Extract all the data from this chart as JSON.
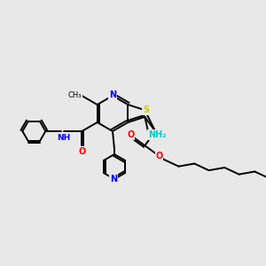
{
  "bg_color": "#e8e8e8",
  "atom_colors": {
    "N": "#0000ff",
    "O": "#ff0000",
    "S": "#cccc00",
    "NH2": "#00cccc",
    "NH": "#0000ff",
    "C": "#000000"
  },
  "bond_color": "#000000",
  "figsize": [
    3.0,
    3.0
  ],
  "dpi": 100,
  "bl": 20
}
